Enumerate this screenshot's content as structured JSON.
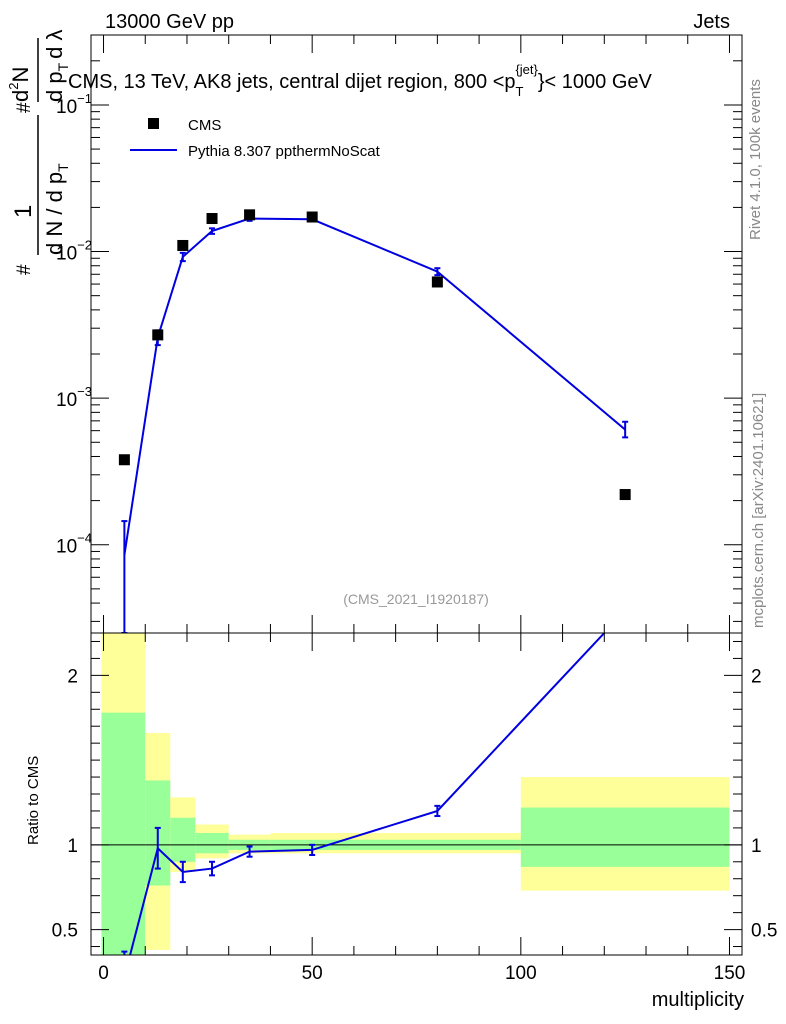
{
  "header": {
    "left": "13000 GeV pp",
    "right": "Jets"
  },
  "plot_title": {
    "main": "CMS, 13 TeV, AK8 jets, central dijet region, 800 <p",
    "sub": "T",
    "sup": "{jet}",
    "tail": "}< 1000 GeV"
  },
  "side_text": {
    "rivet": "Rivet 4.1.0,  100k events",
    "mcplots": "mcplots.cern.ch [arXiv:2401.10621]"
  },
  "watermark": "(CMS_2021_I1920187)",
  "ylabel_main": {
    "line1": "1",
    "line2": "d N / d p",
    "sub_t": "T",
    "hash": "#",
    "num": "d",
    "num_sup": "2",
    "num_n": "N",
    "den": "d p",
    "den_sub": "T",
    "den_l": "d λ"
  },
  "ylabel_ratio": "Ratio to CMS",
  "xlabel": "multiplicity",
  "colors": {
    "mc": "#0000e0",
    "data": "#000000",
    "band_inner": "#99ff99",
    "band_outer": "#ffff99"
  },
  "chart_data": [
    {
      "type": "scatter",
      "yscale": "log",
      "ylim": [
        2.5e-05,
        0.3
      ],
      "xlim": [
        -3,
        153
      ],
      "y_ticks": [
        {
          "value": 0.1,
          "base": "10",
          "exp": "−1"
        },
        {
          "value": 0.01,
          "base": "10",
          "exp": "−2"
        },
        {
          "value": 0.001,
          "base": "10",
          "exp": "−3"
        },
        {
          "value": 0.0001,
          "base": "10",
          "exp": "−4"
        }
      ],
      "legend": [
        {
          "name": "CMS",
          "kind": "marker"
        },
        {
          "name": "Pythia 8.307 ppthermNoScat",
          "kind": "line"
        }
      ],
      "legend_position": "top-left",
      "series": [
        {
          "name": "CMS",
          "x": [
            5,
            13,
            19,
            26,
            35,
            50,
            80,
            125
          ],
          "y": [
            0.00038,
            0.0027,
            0.011,
            0.0168,
            0.0178,
            0.0172,
            0.0062,
            0.00022
          ]
        },
        {
          "name": "Pythia 8.307 ppthermNoScat",
          "x": [
            5,
            13,
            19,
            26,
            35,
            50,
            80,
            125
          ],
          "y": [
            8.5e-05,
            0.0026,
            0.0092,
            0.0138,
            0.0168,
            0.0166,
            0.0073,
            0.00061
          ],
          "yerr_low": [
            6e-05,
            0.0003,
            0.0006,
            0.0006,
            0.0006,
            0.0005,
            0.0004,
            7e-05
          ],
          "yerr_high": [
            6e-05,
            0.0003,
            0.0006,
            0.0006,
            0.0006,
            0.0005,
            0.0004,
            8e-05
          ]
        }
      ]
    },
    {
      "type": "line",
      "ylim": [
        0.35,
        2.25
      ],
      "xlim": [
        -3,
        153
      ],
      "y_ticks": [
        0.5,
        1,
        2
      ],
      "x_ticks": [
        0,
        50,
        100,
        150
      ],
      "reference_line": 1,
      "bands": [
        {
          "x0": -0.5,
          "x1": 10,
          "inner": [
            0.35,
            1.78
          ],
          "outer": [
            0.35,
            2.25
          ]
        },
        {
          "x0": 10,
          "x1": 16,
          "inner": [
            0.76,
            1.38
          ],
          "outer": [
            0.38,
            1.66
          ]
        },
        {
          "x0": 16,
          "x1": 22,
          "inner": [
            0.9,
            1.16
          ],
          "outer": [
            0.84,
            1.28
          ]
        },
        {
          "x0": 22,
          "x1": 30,
          "inner": [
            0.95,
            1.07
          ],
          "outer": [
            0.92,
            1.12
          ]
        },
        {
          "x0": 30,
          "x1": 40,
          "inner": [
            0.97,
            1.03
          ],
          "outer": [
            0.95,
            1.06
          ]
        },
        {
          "x0": 40,
          "x1": 100,
          "inner": [
            0.97,
            1.03
          ],
          "outer": [
            0.95,
            1.07
          ]
        },
        {
          "x0": 100,
          "x1": 150,
          "inner": [
            0.87,
            1.22
          ],
          "outer": [
            0.73,
            1.4
          ]
        }
      ],
      "series": [
        {
          "name": "Pythia 8.307 ppthermNoScat",
          "x": [
            5,
            13,
            19,
            26,
            35,
            50,
            80,
            120
          ],
          "y": [
            0.22,
            0.98,
            0.84,
            0.86,
            0.96,
            0.97,
            1.2,
            2.25
          ],
          "yerr_low": [
            0.15,
            0.12,
            0.06,
            0.04,
            0.03,
            0.03,
            0.03,
            0
          ],
          "yerr_high": [
            0.15,
            0.12,
            0.06,
            0.04,
            0.03,
            0.03,
            0.03,
            0
          ]
        }
      ]
    }
  ]
}
